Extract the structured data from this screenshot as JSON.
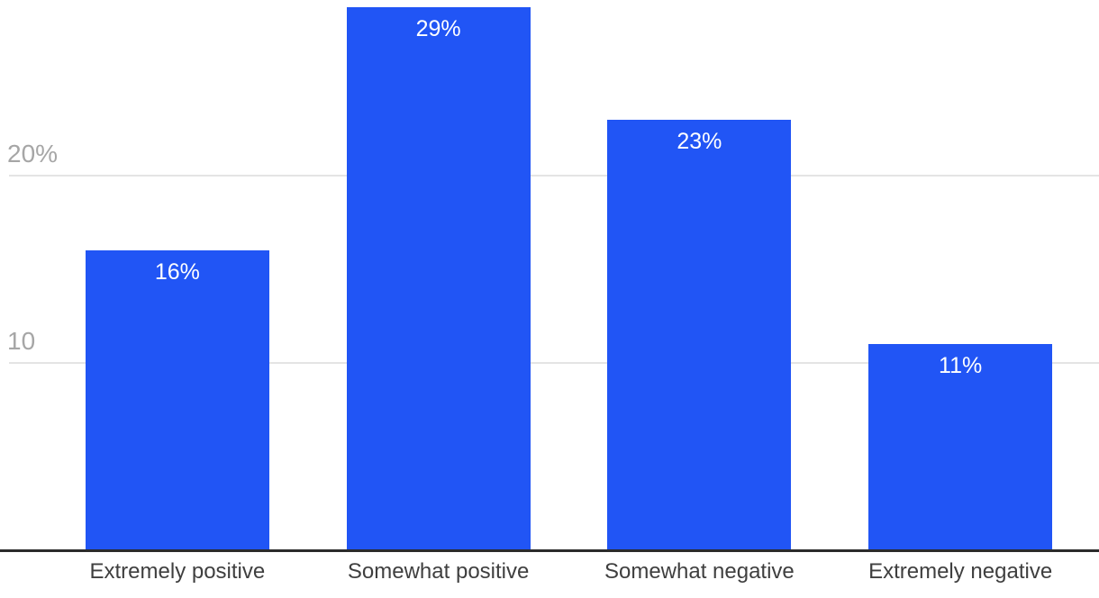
{
  "chart_data": {
    "type": "bar",
    "title": "",
    "xlabel": "",
    "ylabel": "",
    "categories": [
      "Extremely positive",
      "Somewhat positive",
      "Somewhat negative",
      "Extremely negative"
    ],
    "values": [
      16,
      29,
      23,
      11
    ],
    "value_labels": [
      "16%",
      "29%",
      "23%",
      "11%"
    ],
    "unit": "%",
    "yticks": [
      {
        "value": 10,
        "label": "10"
      },
      {
        "value": 20,
        "label": "20%"
      }
    ],
    "ylim": [
      0,
      29
    ],
    "grid": true,
    "legend": false,
    "colors": {
      "bar": "#2155f5",
      "gridline": "#e4e4e4",
      "axis_line": "#2b2b2b",
      "ytick_label": "#a6a6a6",
      "xtick_label": "#3f3f3f",
      "value_label": "#ffffff"
    }
  }
}
